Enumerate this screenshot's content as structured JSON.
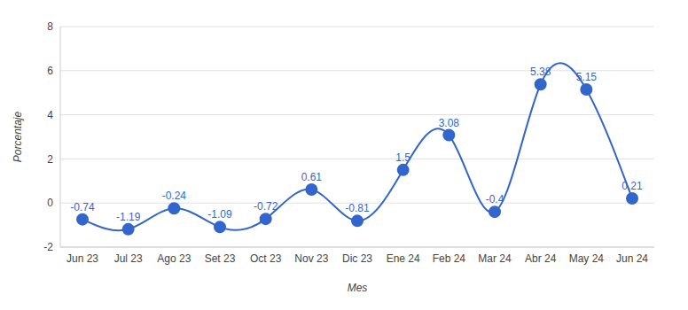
{
  "chart_data": {
    "type": "line",
    "x_label": "Mes",
    "y_label": "Porcentaje",
    "categories": [
      "Jun 23",
      "Jul 23",
      "Ago 23",
      "Set 23",
      "Oct 23",
      "Nov 23",
      "Dic 23",
      "Ene 24",
      "Feb 24",
      "Mar 24",
      "Abr 24",
      "May 24",
      "Jun 24"
    ],
    "values": [
      -0.74,
      -1.19,
      -0.24,
      -1.09,
      -0.72,
      0.61,
      -0.81,
      1.5,
      3.08,
      -0.4,
      5.38,
      5.15,
      0.21
    ],
    "color": "#3366cc",
    "ylim": [
      -2,
      8
    ],
    "yticks": [
      -2,
      0,
      2,
      4,
      6,
      8
    ],
    "grid": true,
    "data_labels": true,
    "marker": "circle",
    "line_style": "solid"
  }
}
